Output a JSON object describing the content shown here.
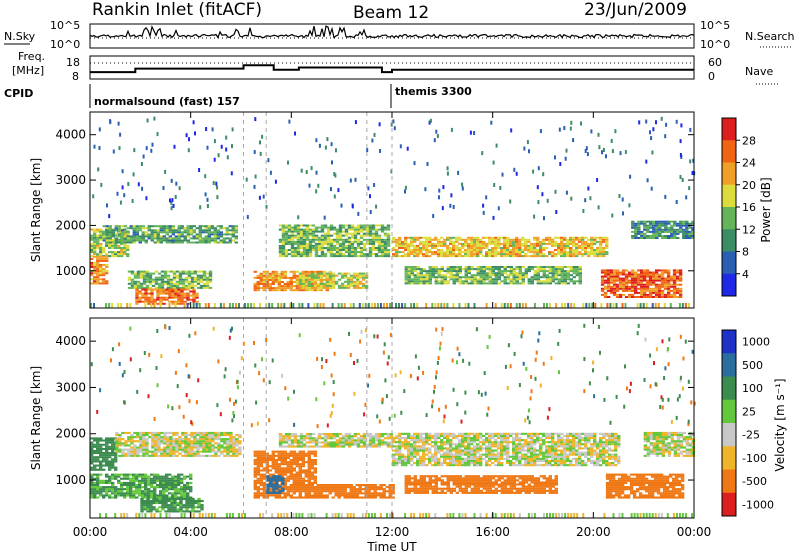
{
  "header": {
    "station": "Rankin Inlet (fitACF)",
    "beam": "Beam 12",
    "date": "23/Jun/2009"
  },
  "noise_panel": {
    "left_label": "N.Sky",
    "right_label": "N.Search",
    "left_ticks": [
      "10^5",
      "10^0"
    ],
    "right_ticks": [
      "10^5",
      "10^0"
    ]
  },
  "freq_panel": {
    "left_label_1": "Freq.",
    "left_label_2": "[MHz]",
    "right_label": "Nave",
    "left_ticks": [
      "18",
      "8"
    ],
    "right_ticks": [
      "60",
      "0"
    ]
  },
  "cpid_panel": {
    "label": "CPID",
    "segments": [
      {
        "label": "normalsound (fast) 157",
        "start_hour": 0
      },
      {
        "label": "themis 3300",
        "start_hour": 12
      }
    ]
  },
  "power_panel": {
    "ylabel": "Slant Range [km]",
    "yticks": [
      "1000",
      "2000",
      "3000",
      "4000"
    ],
    "colorbar_label": "Power [dB]",
    "colorbar_ticks": [
      "4",
      "8",
      "12",
      "16",
      "20",
      "24",
      "28"
    ],
    "colors": [
      "#1e28e6",
      "#2a5fb4",
      "#3c8c64",
      "#64b45a",
      "#dcdc3c",
      "#f0a028",
      "#f06414",
      "#dc1e1e"
    ]
  },
  "velocity_panel": {
    "ylabel": "Slant Range [km]",
    "yticks": [
      "1000",
      "2000",
      "3000",
      "4000"
    ],
    "colorbar_label": "Velocity [m s⁻¹]",
    "colorbar_ticks": [
      "1000",
      "500",
      "100",
      "25",
      "-25",
      "-100",
      "-500",
      "-1000"
    ],
    "colors": [
      "#1e32c8",
      "#2a6ea0",
      "#3c8c50",
      "#64c83c",
      "#c8c8c8",
      "#f0b428",
      "#f07814",
      "#dc1e1e"
    ]
  },
  "x_axis": {
    "label": "Time UT",
    "ticks": [
      "00:00",
      "04:00",
      "08:00",
      "12:00",
      "16:00",
      "20:00",
      "00:00"
    ]
  },
  "chart_data": {
    "type": "heatmap",
    "x_range_hours": [
      0,
      24
    ],
    "y_range_km": [
      180,
      4500
    ],
    "power_range_db": [
      0,
      30
    ],
    "velocity_range_ms": [
      -1000,
      1000
    ],
    "power_bands": [
      {
        "t0": 0.0,
        "t1": 1.5,
        "r0": 1300,
        "r1": 1900,
        "p": 16
      },
      {
        "t0": 0.0,
        "t1": 0.6,
        "r0": 700,
        "r1": 1300,
        "p": 24
      },
      {
        "t0": 0.5,
        "t1": 5.8,
        "r0": 1600,
        "r1": 2000,
        "p": 12
      },
      {
        "t0": 1.5,
        "t1": 4.8,
        "r0": 600,
        "r1": 1000,
        "p": 14
      },
      {
        "t0": 1.8,
        "t1": 4.3,
        "r0": 250,
        "r1": 600,
        "p": 25
      },
      {
        "t0": 6.5,
        "t1": 9.5,
        "r0": 550,
        "r1": 1000,
        "p": 23
      },
      {
        "t0": 7.5,
        "t1": 11.8,
        "r0": 1300,
        "r1": 2000,
        "p": 14
      },
      {
        "t0": 8.3,
        "t1": 11.0,
        "r0": 600,
        "r1": 950,
        "p": 18
      },
      {
        "t0": 12.0,
        "t1": 20.5,
        "r0": 1300,
        "r1": 1750,
        "p": 20
      },
      {
        "t0": 12.5,
        "t1": 19.5,
        "r0": 700,
        "r1": 1100,
        "p": 14
      },
      {
        "t0": 20.3,
        "t1": 23.5,
        "r0": 400,
        "r1": 1000,
        "p": 26
      },
      {
        "t0": 21.5,
        "t1": 24.0,
        "r0": 1700,
        "r1": 2100,
        "p": 10
      }
    ],
    "velocity_bands": [
      {
        "t0": 0.0,
        "t1": 1.0,
        "r0": 1200,
        "r1": 1900,
        "v": 200
      },
      {
        "t0": 0.0,
        "t1": 4.0,
        "r0": 600,
        "r1": 1100,
        "v": 120
      },
      {
        "t0": 1.0,
        "t1": 6.0,
        "r0": 1500,
        "r1": 2000,
        "v": 0
      },
      {
        "t0": 2.0,
        "t1": 4.5,
        "r0": 300,
        "r1": 600,
        "v": 150
      },
      {
        "t0": 6.5,
        "t1": 9.0,
        "r0": 600,
        "r1": 1600,
        "v": -300
      },
      {
        "t0": 7.0,
        "t1": 7.6,
        "r0": 700,
        "r1": 1100,
        "v": 600
      },
      {
        "t0": 7.5,
        "t1": 12.0,
        "r0": 1700,
        "r1": 2000,
        "v": 0
      },
      {
        "t0": 9.0,
        "t1": 12.0,
        "r0": 600,
        "r1": 900,
        "v": -200
      },
      {
        "t0": 12.0,
        "t1": 21.0,
        "r0": 1300,
        "r1": 2000,
        "v": 0
      },
      {
        "t0": 12.5,
        "t1": 18.5,
        "r0": 700,
        "r1": 1100,
        "v": -300
      },
      {
        "t0": 20.5,
        "t1": 23.5,
        "r0": 600,
        "r1": 1100,
        "v": -400
      },
      {
        "t0": 22.0,
        "t1": 24.0,
        "r0": 1500,
        "r1": 2000,
        "v": 0
      }
    ],
    "frequency_mhz": [
      {
        "t0": 0,
        "t1": 1.8,
        "f": 11
      },
      {
        "t0": 1.8,
        "t1": 6.1,
        "f": 12.5
      },
      {
        "t0": 6.1,
        "t1": 7.3,
        "f": 14
      },
      {
        "t0": 7.3,
        "t1": 8.3,
        "f": 12
      },
      {
        "t0": 8.3,
        "t1": 11.6,
        "f": 13
      },
      {
        "t0": 11.6,
        "t1": 12.0,
        "f": 11
      },
      {
        "t0": 12.0,
        "t1": 24.0,
        "f": 12
      }
    ],
    "nave_level": 40
  }
}
